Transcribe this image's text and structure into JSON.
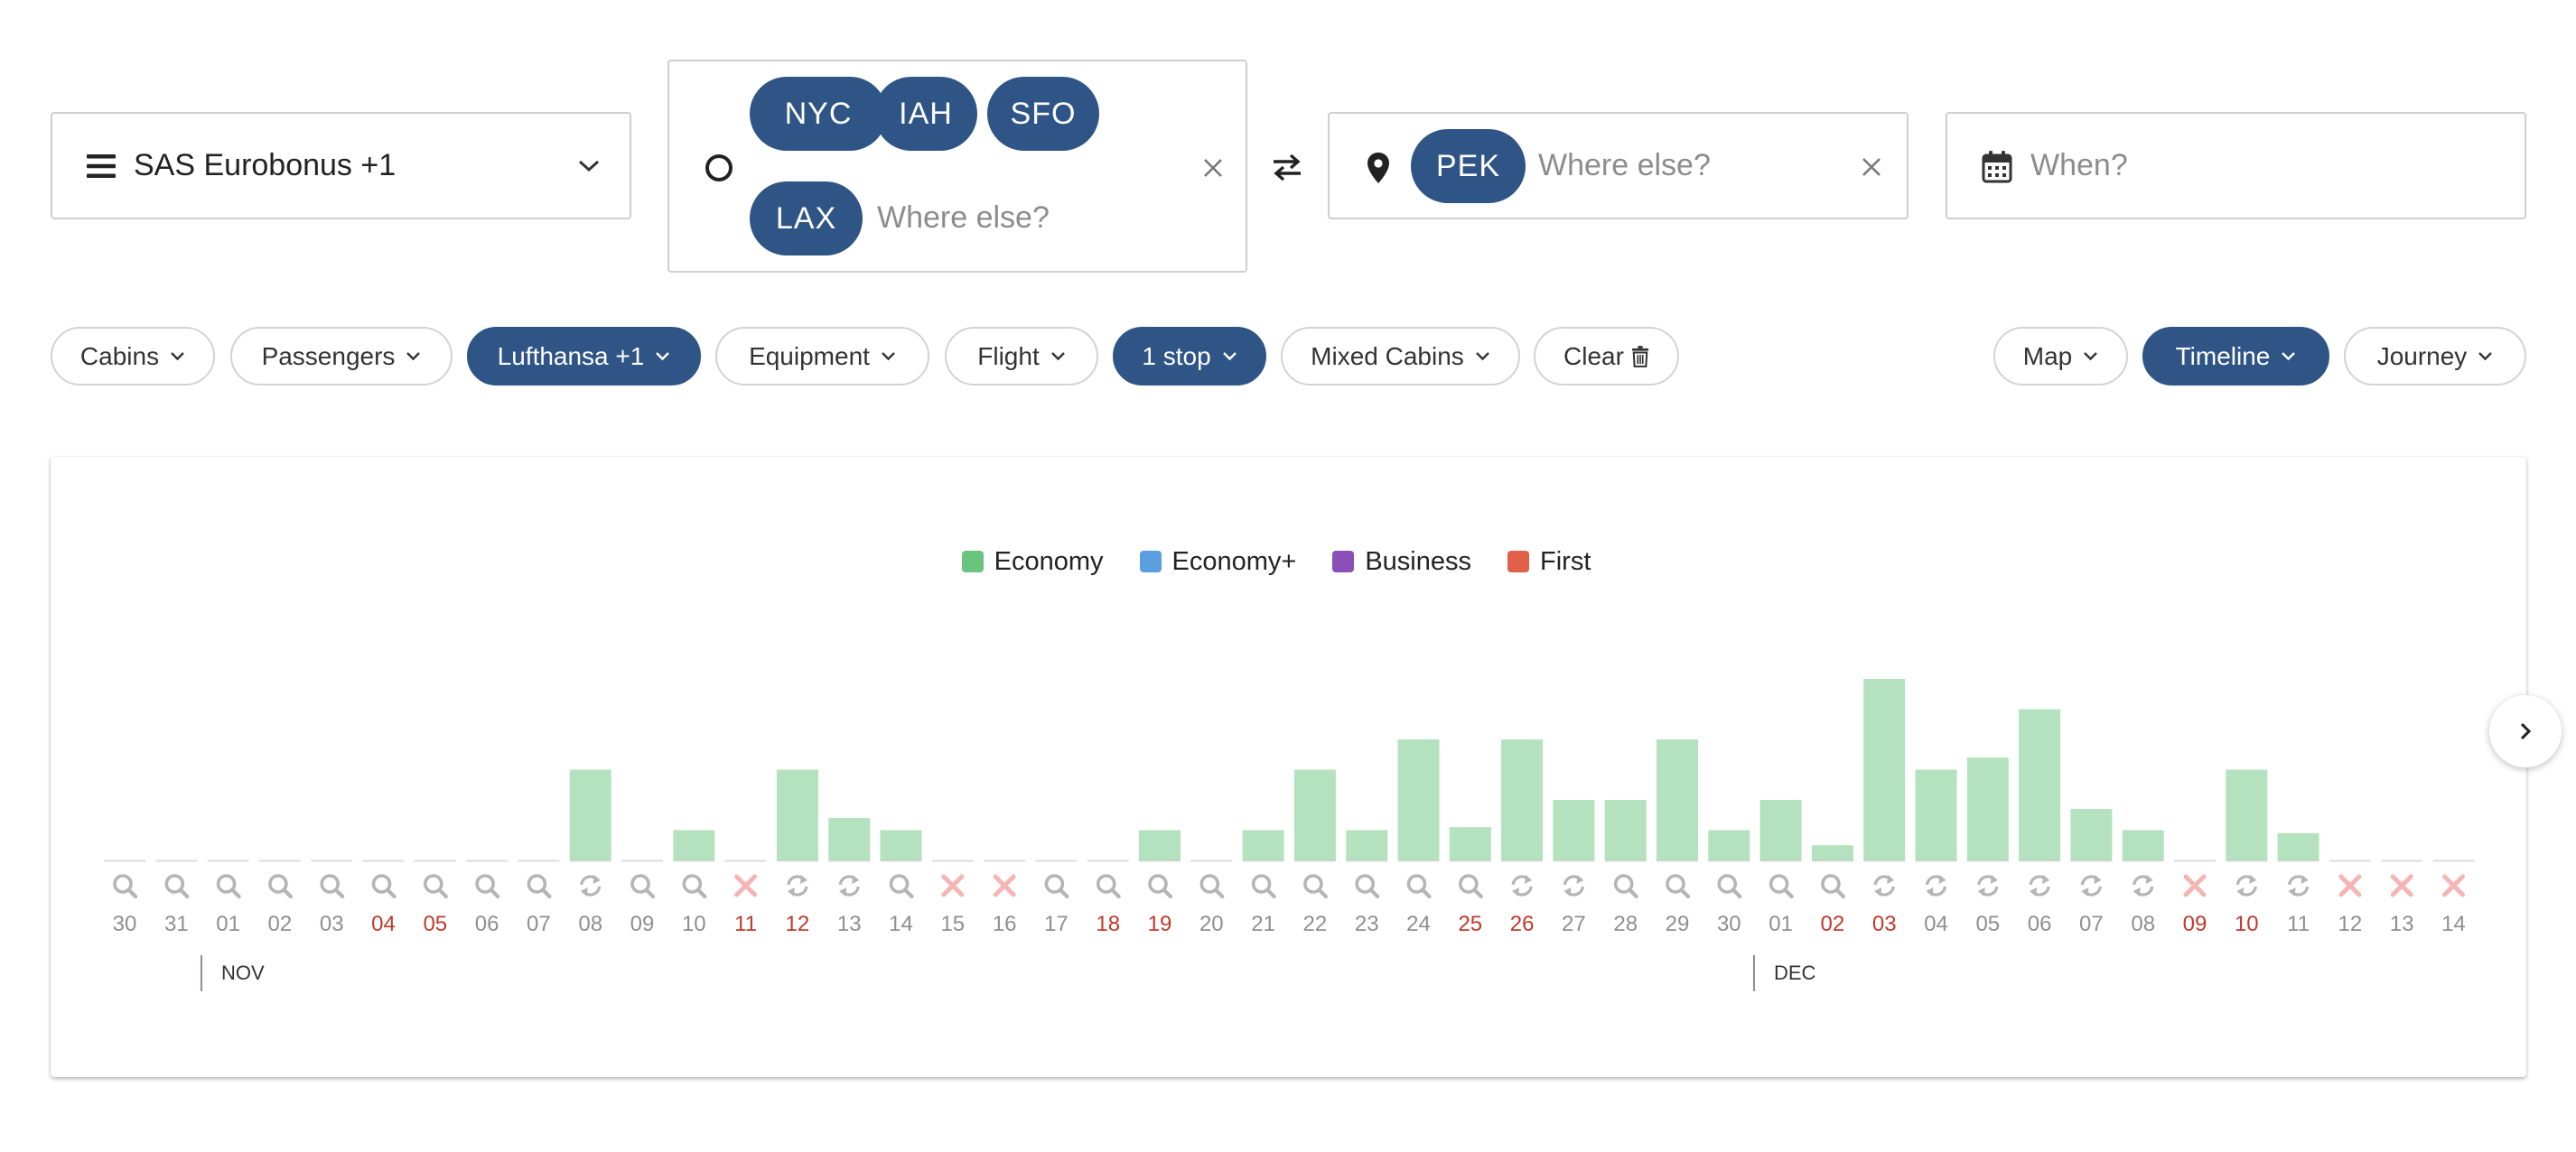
{
  "search": {
    "program": {
      "label": "SAS Eurobonus +1",
      "icon": "menu-icon"
    },
    "origin": {
      "airports": [
        "NYC",
        "IAH",
        "SFO",
        "LAX"
      ],
      "placeholder": "Where else?"
    },
    "destination": {
      "airports": [
        "PEK"
      ],
      "placeholder": "Where else?"
    },
    "when": {
      "placeholder": "When?"
    }
  },
  "filters": {
    "cabins": "Cabins",
    "passengers": "Passengers",
    "airlines": "Lufthansa +1",
    "equipment": "Equipment",
    "flight": "Flight",
    "stops": "1 stop",
    "mixed_cabins": "Mixed Cabins",
    "clear": "Clear"
  },
  "views": {
    "map": "Map",
    "timeline": "Timeline",
    "journey": "Journey"
  },
  "colors": {
    "accent": "#2f5586",
    "economy": "#69c57e",
    "economy_plus": "#5a9ee0",
    "business": "#8a4fb8",
    "first": "#e2604a",
    "weekend_date": "#c0392b",
    "unavailable": "#f5b5b5"
  },
  "chart_data": {
    "type": "bar",
    "legend": [
      "Economy",
      "Economy+",
      "Business",
      "First"
    ],
    "months": [
      {
        "label": "NOV",
        "start_index": 2
      },
      {
        "label": "DEC",
        "start_index": 32
      }
    ],
    "days": [
      {
        "day": "30",
        "value": 0,
        "status": "search",
        "weekend": false
      },
      {
        "day": "31",
        "value": 0,
        "status": "search",
        "weekend": false
      },
      {
        "day": "01",
        "value": 0,
        "status": "search",
        "weekend": false
      },
      {
        "day": "02",
        "value": 0,
        "status": "search",
        "weekend": false
      },
      {
        "day": "03",
        "value": 0,
        "status": "search",
        "weekend": false
      },
      {
        "day": "04",
        "value": 0,
        "status": "search",
        "weekend": true
      },
      {
        "day": "05",
        "value": 0,
        "status": "search",
        "weekend": true
      },
      {
        "day": "06",
        "value": 0,
        "status": "search",
        "weekend": false
      },
      {
        "day": "07",
        "value": 0,
        "status": "search",
        "weekend": false
      },
      {
        "day": "08",
        "value": 3,
        "status": "refresh",
        "weekend": false
      },
      {
        "day": "09",
        "value": 0,
        "status": "search",
        "weekend": false
      },
      {
        "day": "10",
        "value": 1,
        "status": "search",
        "weekend": false
      },
      {
        "day": "11",
        "value": 0,
        "status": "unavailable",
        "weekend": true
      },
      {
        "day": "12",
        "value": 3,
        "status": "refresh",
        "weekend": true
      },
      {
        "day": "13",
        "value": 1.4,
        "status": "refresh",
        "weekend": false
      },
      {
        "day": "14",
        "value": 1,
        "status": "search",
        "weekend": false
      },
      {
        "day": "15",
        "value": 0,
        "status": "unavailable",
        "weekend": false
      },
      {
        "day": "16",
        "value": 0,
        "status": "unavailable",
        "weekend": false
      },
      {
        "day": "17",
        "value": 0,
        "status": "search",
        "weekend": false
      },
      {
        "day": "18",
        "value": 0,
        "status": "search",
        "weekend": true
      },
      {
        "day": "19",
        "value": 1,
        "status": "search",
        "weekend": true
      },
      {
        "day": "20",
        "value": 0,
        "status": "search",
        "weekend": false
      },
      {
        "day": "21",
        "value": 1,
        "status": "search",
        "weekend": false
      },
      {
        "day": "22",
        "value": 3,
        "status": "search",
        "weekend": false
      },
      {
        "day": "23",
        "value": 1,
        "status": "search",
        "weekend": false
      },
      {
        "day": "24",
        "value": 4,
        "status": "search",
        "weekend": false
      },
      {
        "day": "25",
        "value": 1.1,
        "status": "search",
        "weekend": true
      },
      {
        "day": "26",
        "value": 4,
        "status": "refresh",
        "weekend": true
      },
      {
        "day": "27",
        "value": 2,
        "status": "refresh",
        "weekend": false
      },
      {
        "day": "28",
        "value": 2,
        "status": "search",
        "weekend": false
      },
      {
        "day": "29",
        "value": 4,
        "status": "search",
        "weekend": false
      },
      {
        "day": "30",
        "value": 1,
        "status": "search",
        "weekend": false
      },
      {
        "day": "01",
        "value": 2,
        "status": "search",
        "weekend": false
      },
      {
        "day": "02",
        "value": 0.5,
        "status": "search",
        "weekend": true
      },
      {
        "day": "03",
        "value": 6,
        "status": "refresh",
        "weekend": true
      },
      {
        "day": "04",
        "value": 3,
        "status": "refresh",
        "weekend": false
      },
      {
        "day": "05",
        "value": 3.4,
        "status": "refresh",
        "weekend": false
      },
      {
        "day": "06",
        "value": 5,
        "status": "refresh",
        "weekend": false
      },
      {
        "day": "07",
        "value": 1.7,
        "status": "refresh",
        "weekend": false
      },
      {
        "day": "08",
        "value": 1,
        "status": "refresh",
        "weekend": false
      },
      {
        "day": "09",
        "value": 0,
        "status": "unavailable",
        "weekend": true
      },
      {
        "day": "10",
        "value": 3,
        "status": "refresh",
        "weekend": true
      },
      {
        "day": "11",
        "value": 0.9,
        "status": "refresh",
        "weekend": false
      },
      {
        "day": "12",
        "value": 0,
        "status": "unavailable",
        "weekend": false
      },
      {
        "day": "13",
        "value": 0,
        "status": "unavailable",
        "weekend": false
      },
      {
        "day": "14",
        "value": 0,
        "status": "unavailable",
        "weekend": false
      }
    ]
  }
}
